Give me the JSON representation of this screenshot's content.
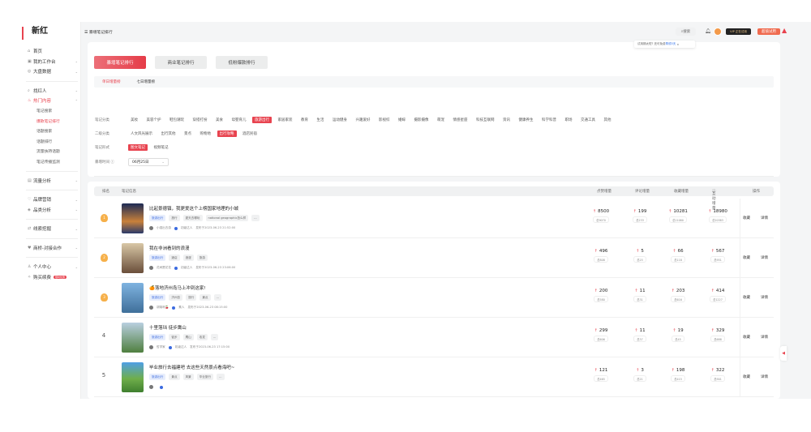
{
  "logo": "新红",
  "sidebar": {
    "items": [
      {
        "label": "首页",
        "icon": "home-icon"
      },
      {
        "label": "我的工作台",
        "icon": "workbench-icon",
        "chevron": true
      },
      {
        "label": "大盘数据",
        "icon": "dashboard-icon",
        "chevron": true
      },
      {
        "label": "找红人",
        "icon": "search-user-icon",
        "chevron": true
      },
      {
        "label": "热门内容",
        "icon": "fire-icon",
        "chevron": true,
        "active": true
      },
      {
        "label": "流量分析",
        "icon": "traffic-icon",
        "chevron": true
      },
      {
        "label": "品牌营销",
        "icon": "brand-icon",
        "chevron": true
      },
      {
        "label": "品类分析",
        "icon": "category-icon",
        "chevron": true
      },
      {
        "label": "线索挖掘",
        "icon": "lead-icon",
        "chevron": true
      },
      {
        "label": "商桥-对接合作",
        "icon": "cooperation-icon",
        "chevron": true
      },
      {
        "label": "个人中心",
        "icon": "user-icon",
        "chevron": true
      },
      {
        "label": "购买续费",
        "icon": "purchase-icon",
        "badge": "限时优惠"
      }
    ],
    "subitems": [
      "笔记搜索",
      "爆款笔记排行",
      "话题搜索",
      "话题排行",
      "流量扶持话题",
      "笔记传播监测"
    ]
  },
  "header": {
    "breadcrumb": "暴增笔记排行",
    "search": "搜索",
    "vip": "VIP 正在试用",
    "upgrade": "超值试用",
    "tip": "试用期太短? 还可免费",
    "tip_link": "再领3天"
  },
  "tabs": [
    "暴增笔记排行",
    "商业笔记排行",
    "低粉爆款排行"
  ],
  "subtabs": [
    "单日增量榜",
    "七日增量榜"
  ],
  "filters": {
    "category_label": "笔记分类",
    "categories": [
      "美妆",
      "美容个护",
      "鞋包潮玩",
      "穿搭打扮",
      "美食",
      "母婴育儿",
      "旅游出行",
      "家居家装",
      "教育",
      "生活",
      "运动健身",
      "兴趣爱好",
      "影视综",
      "婚嫁",
      "摄影摄像",
      "萌宠",
      "情感星座",
      "科技互联网",
      "资讯",
      "健康养生",
      "科学科普",
      "职场",
      "交通工具",
      "其他"
    ],
    "category_active": "旅游出行",
    "sub_label": "二级分类",
    "subcategories": [
      "人文风光展示",
      "出行其他",
      "景点",
      "购物地",
      "出行攻略",
      "酒店民宿"
    ],
    "sub_active": "出行攻略",
    "form_label": "笔记形式",
    "forms": [
      "图文笔记",
      "视频笔记"
    ],
    "form_active": "图文笔记",
    "time_label": "暴增时间",
    "date": "06月25日",
    "sort_label": "排　序",
    "sorts": [
      "按点赞增量最高",
      "按评论增量最高",
      "按收藏增量最高",
      "按互动增量最高"
    ],
    "sort_active": "按互动增量最高",
    "updated": "数据更新于2023-06-25 | 14时",
    "explain": "数据说明",
    "export": "导出结果"
  },
  "table": {
    "headers": [
      "排名",
      "笔记信息",
      "点赞增量",
      "评论增量",
      "收藏增量",
      "互动增量",
      "操作"
    ],
    "actions": [
      "收藏",
      "详情"
    ],
    "rows": [
      {
        "rank": "1",
        "title": "比起景德镇，我更爱这个上榜国家地理的小城",
        "tags": [
          "旅游出行",
          "旅行",
          "夏天去哪玩",
          "national geographic怎么样",
          "..."
        ],
        "author": "小强出去游",
        "level": "初级达人",
        "published": "发布于2023-06-23 21:52:00",
        "likes": "8500",
        "likes_total": "总9070",
        "comments": "199",
        "comments_total": "总233",
        "collects": "10281",
        "collects_total": "总11080",
        "interactions": "18980",
        "interactions_total": "总20383"
      },
      {
        "rank": "2",
        "title": "我在非洲看到的浪漫",
        "tags": [
          "旅游出行",
          "酒店",
          "浪漫",
          "旅游"
        ],
        "author": "花间是花花",
        "level": "初级达人",
        "published": "发布于2023-06-23 23:06:00",
        "likes": "496",
        "likes_total": "总808",
        "comments": "5",
        "comments_total": "总25",
        "collects": "66",
        "collects_total": "总118",
        "interactions": "567",
        "interactions_total": "总951"
      },
      {
        "rank": "3",
        "title": "🍊落地济州岛马上冲到这家!",
        "tags": [
          "旅游出行",
          "济州岛",
          "旅行",
          "景点",
          "..."
        ],
        "author": "胡胡呀🍒",
        "level": "素人",
        "published": "发布于2023-06-23 08:15:00",
        "likes": "200",
        "likes_total": "总580",
        "comments": "11",
        "comments_total": "总31",
        "collects": "203",
        "collects_total": "总616",
        "interactions": "414",
        "interactions_total": "总1227"
      },
      {
        "rank": "4",
        "title": "十里落珰 徒步鹰山",
        "tags": [
          "旅游出行",
          "徒步",
          "鹰山",
          "攻发",
          "..."
        ],
        "author": "哲学家",
        "level": "初级达人",
        "published": "发布于2023-06-23 17:15:00",
        "likes": "299",
        "likes_total": "总606",
        "comments": "11",
        "comments_total": "总37",
        "collects": "19",
        "collects_total": "总45",
        "interactions": "329",
        "interactions_total": "总688"
      },
      {
        "rank": "5",
        "title": "毕业旅行去福建吧 去这些天然景点看海吧~",
        "tags": [
          "旅游出行",
          "景点",
          "风景",
          "毕业旅行",
          "..."
        ],
        "author": "",
        "level": "",
        "published": "",
        "likes": "121",
        "likes_total": "总465",
        "comments": "3",
        "comments_total": "总21",
        "collects": "198",
        "collects_total": "总415",
        "interactions": "322",
        "interactions_total": "总901"
      }
    ]
  },
  "colors": {
    "accent": "#e8434f",
    "tag_blue": "#3a6ae0",
    "export_green": "#3fa33a"
  }
}
